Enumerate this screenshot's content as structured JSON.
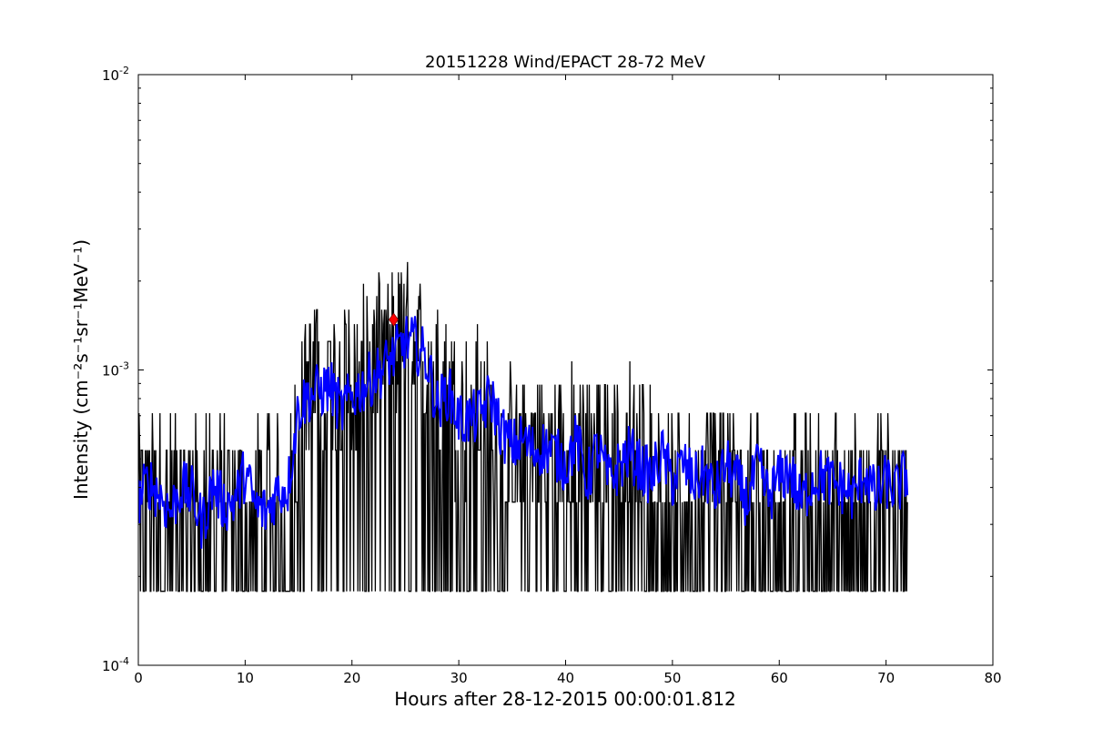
{
  "chart_data": {
    "type": "line",
    "title": "20151228 Wind/EPACT 28-72 MeV",
    "xlabel": "Hours after 28-12-2015 00:00:01.812",
    "ylabel": "Intensity (cm⁻²s⁻¹sr⁻¹MeV⁻¹)",
    "xlim": [
      0,
      80
    ],
    "ylim": [
      0.0001,
      0.01
    ],
    "yscale": "log",
    "grid": false,
    "x_ticks": [
      0,
      10,
      20,
      30,
      40,
      50,
      60,
      70,
      80
    ],
    "x_tick_labels": [
      "0",
      "10",
      "20",
      "30",
      "40",
      "50",
      "60",
      "70",
      "80"
    ],
    "y_tick_labels": [
      {
        "base": "10",
        "exp": "-4",
        "value": 0.0001
      },
      {
        "base": "10",
        "exp": "-3",
        "value": 0.001
      },
      {
        "base": "10",
        "exp": "-2",
        "value": 0.01
      }
    ],
    "quantized_levels": [
      0.000178,
      0.000357,
      0.000535,
      0.000714,
      0.000892,
      0.00107,
      0.00125,
      0.00143,
      0.0016,
      0.00178,
      0.00196,
      0.00214,
      0.00232
    ],
    "series": [
      {
        "color": "#000000",
        "style": "raw intensity (quantized count levels, high cadence)",
        "x": [
          0,
          2,
          4,
          6,
          8,
          10,
          12,
          14,
          15,
          16,
          18,
          20,
          22,
          24,
          26,
          28,
          30,
          32,
          34,
          36,
          38,
          40,
          42,
          44,
          46,
          48,
          50,
          52,
          54,
          56,
          58,
          60,
          62,
          64,
          66,
          68,
          70,
          72
        ],
        "y": [
          0.00036,
          0.00036,
          0.00036,
          0.00036,
          0.00036,
          0.00036,
          0.00036,
          0.00036,
          0.0007,
          0.0009,
          0.0009,
          0.0009,
          0.00107,
          0.00125,
          0.0012,
          0.0009,
          0.00072,
          0.00072,
          0.00054,
          0.00054,
          0.00054,
          0.00054,
          0.00054,
          0.00054,
          0.00054,
          0.00054,
          0.00036,
          0.00036,
          0.00054,
          0.00036,
          0.00036,
          0.00036,
          0.00036,
          0.00036,
          0.00036,
          0.00036,
          0.00036,
          0.00036
        ],
        "min_level": 0.000178,
        "max_level": 0.0024
      },
      {
        "color": "#0000ff",
        "style": "smoothed intensity",
        "x": [
          0,
          1,
          2,
          3,
          4,
          5,
          6,
          7,
          8,
          9,
          10,
          11,
          12,
          13,
          14,
          15,
          16,
          17,
          18,
          19,
          20,
          21,
          22,
          23,
          24,
          25,
          26,
          27,
          28,
          29,
          30,
          31,
          32,
          33,
          34,
          35,
          36,
          37,
          38,
          39,
          40,
          41,
          42,
          43,
          44,
          45,
          46,
          47,
          48,
          49,
          50,
          51,
          52,
          53,
          54,
          55,
          56,
          57,
          58,
          59,
          60,
          61,
          62,
          63,
          64,
          65,
          66,
          67,
          68,
          69,
          70,
          71,
          72
        ],
        "y": [
          0.00036,
          0.00042,
          0.00038,
          0.00033,
          0.0004,
          0.00038,
          0.0003,
          0.00041,
          0.00035,
          0.00036,
          0.00045,
          0.00034,
          0.00033,
          0.00039,
          0.0004,
          0.00075,
          0.00082,
          0.00085,
          0.00088,
          0.00072,
          0.00082,
          0.00088,
          0.00095,
          0.00102,
          0.00112,
          0.00125,
          0.00122,
          0.00108,
          0.00075,
          0.00085,
          0.00068,
          0.00068,
          0.0007,
          0.00082,
          0.00062,
          0.00055,
          0.00058,
          0.00053,
          0.00055,
          0.00052,
          0.00048,
          0.00058,
          0.00042,
          0.00055,
          0.00042,
          0.00047,
          0.00053,
          0.00047,
          0.00043,
          0.00052,
          0.00042,
          0.00048,
          0.00042,
          0.00045,
          0.00038,
          0.00048,
          0.00042,
          0.00036,
          0.00047,
          0.00037,
          0.00043,
          0.00046,
          0.00035,
          0.00042,
          0.00044,
          0.00041,
          0.0004,
          0.00037,
          0.00046,
          0.00037,
          0.00042,
          0.00039,
          0.00045
        ]
      }
    ],
    "marker": {
      "x": 23.9,
      "y": 0.00148,
      "shape": "diamond",
      "color": "#ff0000"
    }
  }
}
